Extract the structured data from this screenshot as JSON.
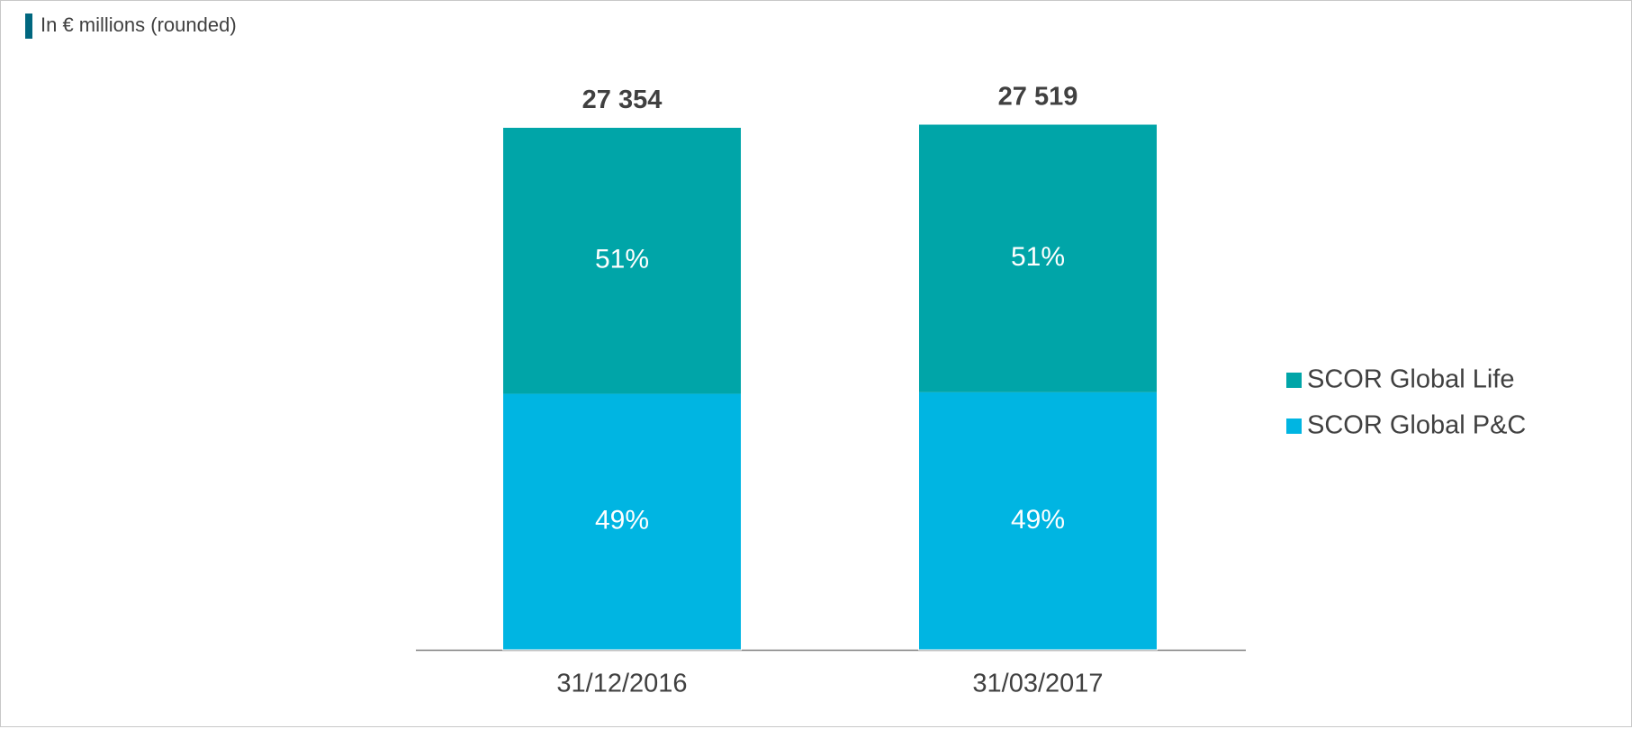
{
  "chart_data": {
    "type": "stacked_bar",
    "subtitle": "In € millions (rounded)",
    "categories": [
      "31/12/2016",
      "31/03/2017"
    ],
    "totals": {
      "values": [
        27354,
        27519
      ],
      "value_labels": [
        "27 354",
        "27 519"
      ]
    },
    "series": [
      {
        "name": "SCOR Global Life",
        "color": "#00a5a8",
        "values": [
          51,
          51
        ],
        "value_labels": [
          "51%",
          "51%"
        ]
      },
      {
        "name": "SCOR Global P&C",
        "color": "#00b5e2",
        "values": [
          49,
          49
        ],
        "value_labels": [
          "49%",
          "49%"
        ]
      }
    ],
    "legend": "right"
  }
}
